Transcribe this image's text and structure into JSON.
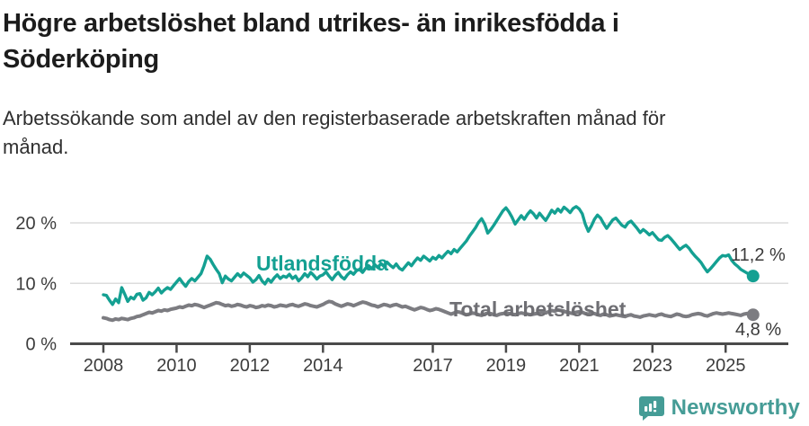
{
  "header": {
    "title": "Högre arbetslöshet bland utrikes- än inrikesfödda i Söderköping",
    "subtitle": "Arbetssökande som andel av den registerbaserade arbetskraften månad för månad."
  },
  "chart_data": {
    "type": "line",
    "title": "Högre arbetslöshet bland utrikes- än inrikesfödda i Söderköping",
    "subtitle": "Arbetssökande som andel av den registerbaserade arbetskraften månad för månad.",
    "unit": "%",
    "xlabel": "",
    "ylabel": "",
    "ylim": [
      0,
      24
    ],
    "grid": true,
    "legend_position": "inline-labels",
    "x_start": "2008-01",
    "x_end": "2025-10",
    "x_step_months": 1,
    "x_tick_years": [
      2008,
      2010,
      2012,
      2014,
      2017,
      2019,
      2021,
      2023,
      2025
    ],
    "x_tick_labels": [
      "2008",
      "2010",
      "2012",
      "2014",
      "2017",
      "2019",
      "2021",
      "2023",
      "2025"
    ],
    "y_ticks": [
      {
        "value": 0,
        "label": "0 %"
      },
      {
        "value": 10,
        "label": "10 %"
      },
      {
        "value": 20,
        "label": "20 %"
      }
    ],
    "series": [
      {
        "name": "Utlandsfödda",
        "color": "#14a092",
        "end_value": 11.2,
        "end_label": "11,2 %",
        "values": [
          8.1,
          8.0,
          7.2,
          6.5,
          7.4,
          6.8,
          9.3,
          8.2,
          7.0,
          7.7,
          7.4,
          8.2,
          8.3,
          7.2,
          7.6,
          8.5,
          8.1,
          8.6,
          9.2,
          8.4,
          8.9,
          9.3,
          9.0,
          9.6,
          10.2,
          10.8,
          10.1,
          9.5,
          10.3,
          10.8,
          10.4,
          11.0,
          11.6,
          12.9,
          14.5,
          14.0,
          13.1,
          12.3,
          11.6,
          10.1,
          11.2,
          10.7,
          10.4,
          11.0,
          11.6,
          11.1,
          11.7,
          11.3,
          10.9,
          10.2,
          10.6,
          11.3,
          10.4,
          9.9,
          10.7,
          10.2,
          10.9,
          11.4,
          10.8,
          11.2,
          11.0,
          11.5,
          10.8,
          11.2,
          10.4,
          10.9,
          11.6,
          11.1,
          11.8,
          11.3,
          10.7,
          11.2,
          11.4,
          11.9,
          11.2,
          10.6,
          11.3,
          11.8,
          11.1,
          10.7,
          11.4,
          11.9,
          11.5,
          12.1,
          12.3,
          11.8,
          12.5,
          12.9,
          12.4,
          13.1,
          12.6,
          13.3,
          12.8,
          13.5,
          13.0,
          12.6,
          13.2,
          12.5,
          12.2,
          12.8,
          13.4,
          12.9,
          13.6,
          14.2,
          13.8,
          14.5,
          14.1,
          13.7,
          14.3,
          14.0,
          14.6,
          14.2,
          14.8,
          15.3,
          14.9,
          15.6,
          15.2,
          15.8,
          16.4,
          17.0,
          17.8,
          18.5,
          19.2,
          20.1,
          20.7,
          19.8,
          18.3,
          18.9,
          19.6,
          20.4,
          21.2,
          22.0,
          22.5,
          21.8,
          20.9,
          19.8,
          20.5,
          21.2,
          20.6,
          21.4,
          22.0,
          21.5,
          20.8,
          21.6,
          21.0,
          20.4,
          21.2,
          22.1,
          21.6,
          22.3,
          21.8,
          22.6,
          22.2,
          21.7,
          22.4,
          22.7,
          22.3,
          21.5,
          19.8,
          18.6,
          19.5,
          20.6,
          21.3,
          20.8,
          19.9,
          19.1,
          19.8,
          20.5,
          20.8,
          20.2,
          19.6,
          19.3,
          20.0,
          20.3,
          19.7,
          19.1,
          18.4,
          18.9,
          18.5,
          18.0,
          18.4,
          17.8,
          17.2,
          17.1,
          17.6,
          17.9,
          17.4,
          16.8,
          16.2,
          15.6,
          16.0,
          16.3,
          15.8,
          15.1,
          14.5,
          14.0,
          13.4,
          12.6,
          11.9,
          12.4,
          13.0,
          13.6,
          14.2,
          14.6,
          14.5,
          14.7,
          13.8,
          13.2,
          12.8,
          12.3,
          12.0,
          11.7,
          11.4,
          11.2
        ]
      },
      {
        "name": "Total arbetslöshet",
        "color": "#7c7c81",
        "end_value": 4.8,
        "end_label": "4,8 %",
        "values": [
          4.3,
          4.2,
          4.0,
          3.9,
          4.1,
          4.0,
          4.2,
          4.1,
          4.0,
          4.2,
          4.3,
          4.5,
          4.6,
          4.8,
          5.0,
          5.2,
          5.1,
          5.3,
          5.5,
          5.4,
          5.6,
          5.5,
          5.7,
          5.8,
          5.9,
          6.1,
          6.0,
          6.2,
          6.4,
          6.3,
          6.5,
          6.4,
          6.2,
          6.0,
          6.2,
          6.4,
          6.6,
          6.8,
          6.7,
          6.5,
          6.3,
          6.4,
          6.2,
          6.3,
          6.5,
          6.4,
          6.2,
          6.1,
          6.3,
          6.2,
          6.0,
          6.1,
          6.3,
          6.2,
          6.4,
          6.3,
          6.1,
          6.2,
          6.4,
          6.3,
          6.2,
          6.4,
          6.5,
          6.3,
          6.2,
          6.4,
          6.6,
          6.5,
          6.3,
          6.2,
          6.1,
          6.3,
          6.5,
          6.8,
          7.0,
          6.9,
          6.6,
          6.4,
          6.2,
          6.4,
          6.6,
          6.5,
          6.3,
          6.5,
          6.7,
          6.9,
          6.8,
          6.6,
          6.4,
          6.3,
          6.1,
          6.3,
          6.5,
          6.4,
          6.2,
          6.4,
          6.5,
          6.3,
          6.1,
          6.2,
          6.0,
          5.8,
          5.6,
          5.8,
          6.0,
          5.9,
          5.7,
          5.5,
          5.6,
          5.8,
          5.7,
          5.5,
          5.3,
          5.1,
          4.9,
          5.1,
          5.3,
          5.2,
          5.0,
          4.8,
          4.9,
          5.1,
          5.0,
          4.8,
          4.7,
          4.9,
          5.1,
          5.0,
          4.8,
          4.7,
          4.9,
          5.0,
          5.1,
          5.0,
          4.9,
          4.8,
          5.0,
          5.1,
          5.0,
          4.9,
          4.8,
          4.9,
          5.0,
          5.1,
          5.2,
          5.1,
          5.3,
          5.5,
          5.4,
          5.6,
          5.5,
          5.4,
          5.2,
          5.1,
          5.0,
          5.2,
          5.3,
          5.2,
          5.0,
          4.9,
          5.1,
          5.0,
          4.8,
          4.7,
          4.9,
          4.8,
          4.6,
          4.7,
          4.8,
          4.7,
          4.6,
          4.5,
          4.7,
          4.8,
          4.6,
          4.5,
          4.4,
          4.6,
          4.7,
          4.8,
          4.7,
          4.6,
          4.8,
          4.9,
          4.7,
          4.6,
          4.5,
          4.7,
          4.9,
          4.8,
          4.6,
          4.5,
          4.6,
          4.8,
          4.9,
          5.0,
          4.9,
          4.7,
          4.6,
          4.8,
          5.0,
          5.1,
          5.0,
          4.9,
          5.0,
          5.1,
          5.0,
          4.9,
          4.8,
          4.7,
          4.9,
          5.0,
          4.9,
          4.8
        ]
      }
    ],
    "style": {
      "grid_color": "#dcdcdc",
      "axis_color": "#4a4a4a",
      "tick_label_color": "#3c3c3c",
      "value_label_color": "#3a3a3a"
    }
  },
  "footer": {
    "brand": "Newsworthy"
  }
}
